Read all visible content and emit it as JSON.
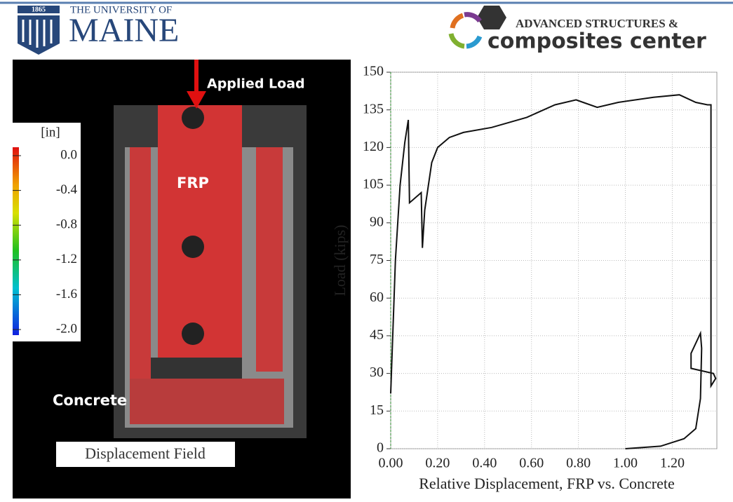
{
  "header": {
    "year": "1865",
    "university_prefix": "THE UNIVERSITY OF",
    "university": "MAINE",
    "center_line1": "ADVANCED STRUCTURES &",
    "center_line2": "composites center"
  },
  "image": {
    "load_label": "Applied Load",
    "frp_label": "FRP",
    "concrete_label": "Concrete",
    "caption": "Displacement Field",
    "colorbar": {
      "title": "[in]",
      "labels": [
        "0.0",
        "-0.4",
        "-0.8",
        "-1.2",
        "-1.6",
        "-2.0"
      ]
    }
  },
  "chart_data": {
    "type": "line",
    "xlabel": "Relative Displacement, FRP vs. Concrete",
    "ylabel": "Load (kips)",
    "x": [
      0,
      0.02,
      0.04,
      0.06,
      0.075,
      0.08,
      0.13,
      0.135,
      0.145,
      0.175,
      0.2,
      0.25,
      0.31,
      0.43,
      0.58,
      0.7,
      0.79,
      0.82,
      0.88,
      0.97,
      1.12,
      1.23,
      1.3,
      1.35,
      1.365,
      1.365,
      1.385,
      1.375,
      1.28,
      1.28,
      1.32,
      1.325,
      1.32,
      1.3,
      1.25,
      1.15,
      1.0
    ],
    "values": [
      22,
      75,
      105,
      122,
      131,
      98,
      102,
      80,
      95,
      114,
      120,
      124,
      126,
      128,
      132,
      137,
      139,
      138,
      136,
      138,
      140,
      141,
      138,
      137,
      137,
      25,
      28,
      30,
      32,
      38,
      46,
      40,
      20,
      8,
      4,
      1,
      0
    ],
    "color": "#111111",
    "xlim": [
      0,
      1.39
    ],
    "ylim": [
      0,
      150
    ],
    "xticks": [
      {
        "value": 0,
        "label": "0.00"
      },
      {
        "value": 0.2,
        "label": "0.20"
      },
      {
        "value": 0.4,
        "label": "0.40"
      },
      {
        "value": 0.6,
        "label": "0.60"
      },
      {
        "value": 0.8,
        "label": "0.80"
      },
      {
        "value": 1,
        "label": "1.00"
      },
      {
        "value": 1.2,
        "label": "1.20"
      }
    ],
    "yticks": [
      0,
      15,
      30,
      45,
      60,
      75,
      90,
      105,
      120,
      135,
      150
    ],
    "grid": true
  }
}
